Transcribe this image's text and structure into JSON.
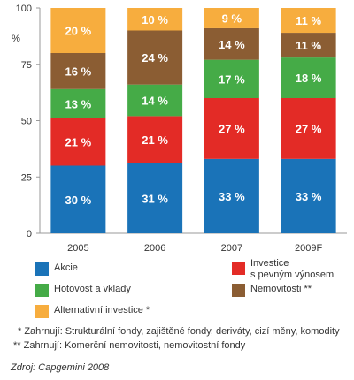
{
  "chart_data": {
    "type": "bar",
    "stacked": true,
    "categories": [
      "2005",
      "2006",
      "2007",
      "2009F"
    ],
    "series": [
      {
        "name": "Akcie",
        "color": "#1a73b8",
        "values": [
          30,
          31,
          33,
          33
        ],
        "labels": [
          "30 %",
          "31 %",
          "33 %",
          "33 %"
        ]
      },
      {
        "name": "Investice\ns pevným výnosem",
        "color": "#e32b26",
        "values": [
          21,
          21,
          27,
          27
        ],
        "labels": [
          "21 %",
          "21 %",
          "27 %",
          "27 %"
        ]
      },
      {
        "name": "Hotovost a vklady",
        "color": "#45ab47",
        "values": [
          13,
          14,
          17,
          18
        ],
        "labels": [
          "13 %",
          "14 %",
          "17 %",
          "18 %"
        ]
      },
      {
        "name": "Nemovitosti **",
        "color": "#8b5d33",
        "values": [
          16,
          24,
          14,
          11
        ],
        "labels": [
          "16 %",
          "24 %",
          "14 %",
          "11 %"
        ]
      },
      {
        "name": "Alternativní investice *",
        "color": "#f7ad3e",
        "values": [
          20,
          10,
          9,
          11
        ],
        "labels": [
          "20 %",
          "10 %",
          "9 %",
          "11 %"
        ]
      }
    ],
    "ylabel": "%",
    "ylim": [
      0,
      100
    ],
    "yticks": [
      0,
      25,
      50,
      75,
      100
    ],
    "ytick_labels": [
      "0",
      "25",
      "50",
      "75",
      "100"
    ],
    "grid": false,
    "legend_position": "bottom"
  },
  "notes": {
    "note1": "* Zahrnují: Strukturální fondy, zajištěné fondy, deriváty, cizí měny, komodity",
    "note2": "** Zahrnují: Komerční nemovitosti, nemovitostní fondy"
  },
  "source": "Zdroj: Capgemini 2008"
}
